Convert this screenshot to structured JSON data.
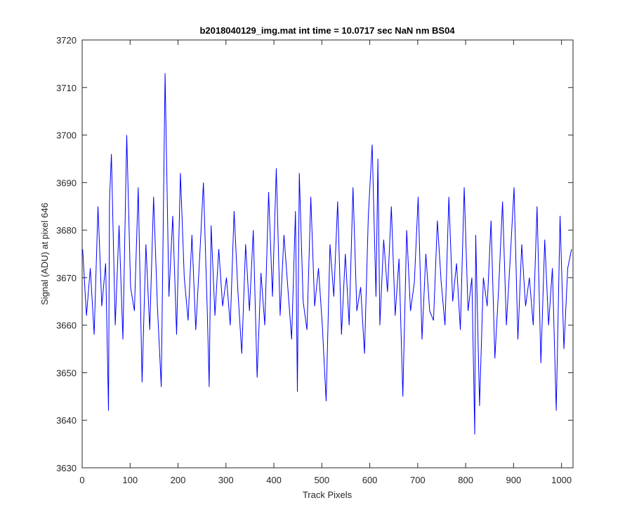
{
  "chart_data": {
    "type": "line",
    "title": "b2018040129_img.mat int time = 10.0717 sec  NaN nm BS04",
    "xlabel": "Track Pixels",
    "ylabel": "Signal (ADU) at pixel 646",
    "xlim": [
      0,
      1024
    ],
    "ylim": [
      3630,
      3720
    ],
    "xticks": [
      0,
      100,
      200,
      300,
      400,
      500,
      600,
      700,
      800,
      900,
      1000
    ],
    "yticks": [
      3630,
      3640,
      3650,
      3660,
      3670,
      3680,
      3690,
      3700,
      3710,
      3720
    ],
    "grid": false,
    "line_color": "#0000ff",
    "series": [
      {
        "x": [
          1,
          9,
          17,
          25,
          33,
          41,
          49,
          55,
          57,
          61,
          69,
          77,
          85,
          93,
          101,
          109,
          117,
          125,
          133,
          141,
          149,
          157,
          165,
          173,
          181,
          189,
          197,
          205,
          213,
          221,
          229,
          237,
          245,
          253,
          261,
          265,
          269,
          277,
          285,
          293,
          301,
          309,
          317,
          325,
          333,
          341,
          349,
          357,
          365,
          373,
          381,
          389,
          397,
          405,
          413,
          421,
          429,
          437,
          445,
          449,
          453,
          461,
          469,
          477,
          485,
          493,
          501,
          509,
          517,
          525,
          533,
          541,
          549,
          557,
          565,
          573,
          581,
          589,
          597,
          605,
          613,
          617,
          621,
          629,
          637,
          645,
          653,
          661,
          669,
          677,
          685,
          693,
          701,
          709,
          717,
          725,
          733,
          741,
          749,
          757,
          765,
          773,
          781,
          789,
          797,
          805,
          813,
          819,
          821,
          829,
          837,
          845,
          853,
          861,
          869,
          877,
          885,
          893,
          901,
          909,
          917,
          925,
          933,
          941,
          949,
          957,
          965,
          973,
          981,
          989,
          997,
          1005,
          1013,
          1021
        ],
        "y": [
          3676,
          3662,
          3672,
          3658,
          3685,
          3664,
          3673,
          3642,
          3686,
          3696,
          3660,
          3681,
          3657,
          3700,
          3668,
          3663,
          3689,
          3648,
          3677,
          3659,
          3687,
          3664,
          3647,
          3713,
          3666,
          3683,
          3658,
          3692,
          3670,
          3661,
          3679,
          3659,
          3674,
          3690,
          3663,
          3647,
          3681,
          3662,
          3676,
          3664,
          3670,
          3660,
          3684,
          3667,
          3654,
          3677,
          3663,
          3680,
          3649,
          3671,
          3660,
          3688,
          3666,
          3693,
          3662,
          3679,
          3668,
          3657,
          3684,
          3646,
          3692,
          3665,
          3659,
          3687,
          3664,
          3672,
          3660,
          3644,
          3677,
          3666,
          3686,
          3658,
          3675,
          3660,
          3689,
          3663,
          3668,
          3654,
          3683,
          3698,
          3666,
          3695,
          3660,
          3678,
          3667,
          3685,
          3662,
          3674,
          3645,
          3680,
          3663,
          3669,
          3687,
          3657,
          3675,
          3663,
          3661,
          3682,
          3669,
          3660,
          3687,
          3665,
          3673,
          3659,
          3689,
          3663,
          3670,
          3637,
          3679,
          3643,
          3670,
          3664,
          3682,
          3653,
          3668,
          3686,
          3660,
          3674,
          3689,
          3657,
          3677,
          3664,
          3670,
          3660,
          3685,
          3652,
          3678,
          3660,
          3672,
          3642,
          3683,
          3655,
          3672,
          3676
        ]
      }
    ]
  }
}
